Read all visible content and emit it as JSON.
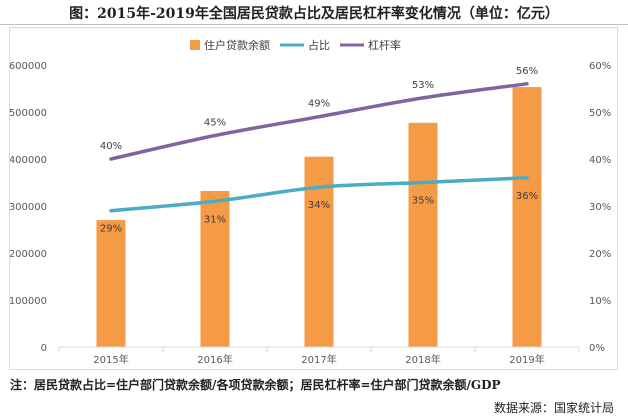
{
  "title": "图：2015年-2019年全国居民贷款占比及居民杠杆率变化情况（单位：亿元）",
  "note": "注：居民贷款占比=住户部门贷款余额/各项贷款余额；居民杠杆率=住户部门贷款余额/GDP",
  "source": "数据来源：国家统计局",
  "colors": {
    "bar": "#f59a45",
    "share_line": "#4bacc6",
    "leverage_line": "#8064a2",
    "axis": "#595959",
    "grid": "#d9d9d9"
  },
  "chart_data": {
    "type": "bar",
    "categories": [
      "2015年",
      "2016年",
      "2017年",
      "2018年",
      "2019年"
    ],
    "series": [
      {
        "name": "住户贷款余额",
        "type": "bar",
        "axis": "left",
        "values": [
          270000,
          332000,
          405000,
          477000,
          553000
        ]
      },
      {
        "name": "占比",
        "type": "line",
        "axis": "right",
        "values": [
          29,
          31,
          34,
          35,
          36
        ],
        "labels": [
          "29%",
          "31%",
          "34%",
          "35%",
          "36%"
        ]
      },
      {
        "name": "杠杆率",
        "type": "line",
        "axis": "right",
        "values": [
          40,
          45,
          49,
          53,
          56
        ],
        "labels": [
          "40%",
          "45%",
          "49%",
          "53%",
          "56%"
        ]
      }
    ],
    "y_left": {
      "lim": [
        0,
        600000
      ],
      "ticks": [
        "0",
        "100000",
        "200000",
        "300000",
        "400000",
        "500000",
        "600000"
      ]
    },
    "y_right": {
      "lim": [
        0,
        60
      ],
      "ticks": [
        "0%",
        "10%",
        "20%",
        "30%",
        "40%",
        "50%",
        "60%"
      ]
    },
    "legend_position": "top",
    "grid": false
  }
}
